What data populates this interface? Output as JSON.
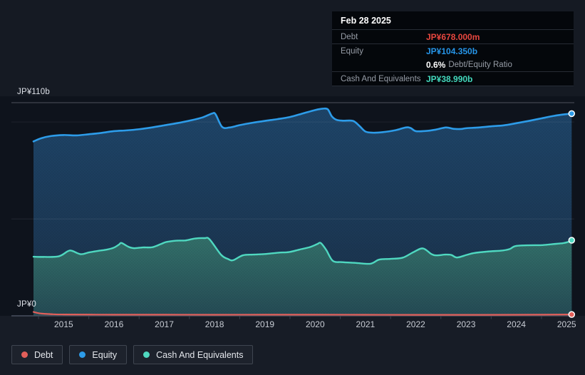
{
  "colors": {
    "debt": "#e25f5a",
    "equity": "#2d9ce9",
    "cash": "#4fd8c0",
    "debt_value": "#e8473f",
    "equity_value": "#2695e8",
    "cash_value": "#43d9bd"
  },
  "y_axis": {
    "top_label": "JP¥110b",
    "zero_label": "JP¥0"
  },
  "tooltip": {
    "date": "Feb 28 2025",
    "debt_label": "Debt",
    "debt_value": "JP¥678.000m",
    "equity_label": "Equity",
    "equity_value": "JP¥104.350b",
    "ratio_value": "0.6%",
    "ratio_label": "Debt/Equity Ratio",
    "cash_label": "Cash And Equivalents",
    "cash_value": "JP¥38.990b"
  },
  "legend": {
    "items": [
      {
        "label": "Debt",
        "color_key": "debt"
      },
      {
        "label": "Equity",
        "color_key": "equity"
      },
      {
        "label": "Cash And Equivalents",
        "color_key": "cash"
      }
    ]
  },
  "chart_data": {
    "type": "area",
    "title": "",
    "x_unit": "fiscal year",
    "y_unit": "JP¥ billions",
    "xlim": [
      2014.4,
      2025.11
    ],
    "ylim": [
      0,
      110
    ],
    "x_ticks": [
      2015,
      2016,
      2017,
      2018,
      2019,
      2020,
      2021,
      2022,
      2023,
      2024,
      2025
    ],
    "y_gridlines": [
      110,
      100,
      50,
      0
    ],
    "grid": "horizontal-only",
    "legend_position": "bottom-left",
    "series": [
      {
        "name": "Debt",
        "color_key": "debt",
        "latest_label": "JP¥678.000m",
        "points": [
          [
            2014.4,
            2.0
          ],
          [
            2014.55,
            1.2
          ],
          [
            2014.8,
            0.8
          ],
          [
            2015.0,
            0.7
          ],
          [
            2016.0,
            0.6
          ],
          [
            2017.0,
            0.6
          ],
          [
            2018.0,
            0.55
          ],
          [
            2019.0,
            0.6
          ],
          [
            2020.0,
            0.6
          ],
          [
            2021.0,
            0.55
          ],
          [
            2022.0,
            0.5
          ],
          [
            2023.0,
            0.5
          ],
          [
            2024.0,
            0.55
          ],
          [
            2025.1,
            0.678
          ]
        ]
      },
      {
        "name": "Equity",
        "color_key": "equity",
        "latest_label": "JP¥104.350b",
        "points": [
          [
            2014.4,
            90.0
          ],
          [
            2014.55,
            91.6
          ],
          [
            2014.75,
            92.8
          ],
          [
            2015.0,
            93.3
          ],
          [
            2015.25,
            93.1
          ],
          [
            2015.5,
            93.7
          ],
          [
            2015.75,
            94.4
          ],
          [
            2016.0,
            95.3
          ],
          [
            2016.25,
            95.7
          ],
          [
            2016.5,
            96.3
          ],
          [
            2016.75,
            97.2
          ],
          [
            2017.0,
            98.3
          ],
          [
            2017.25,
            99.4
          ],
          [
            2017.5,
            100.7
          ],
          [
            2017.75,
            102.3
          ],
          [
            2017.95,
            104.4
          ],
          [
            2018.02,
            104.0
          ],
          [
            2018.15,
            97.5
          ],
          [
            2018.3,
            97.2
          ],
          [
            2018.5,
            98.4
          ],
          [
            2018.75,
            99.6
          ],
          [
            2019.0,
            100.6
          ],
          [
            2019.25,
            101.5
          ],
          [
            2019.5,
            102.6
          ],
          [
            2019.75,
            104.4
          ],
          [
            2020.0,
            106.2
          ],
          [
            2020.15,
            106.9
          ],
          [
            2020.25,
            106.6
          ],
          [
            2020.33,
            103.0
          ],
          [
            2020.42,
            101.2
          ],
          [
            2020.55,
            100.7
          ],
          [
            2020.75,
            100.6
          ],
          [
            2020.88,
            98.0
          ],
          [
            2021.0,
            95.1
          ],
          [
            2021.15,
            94.5
          ],
          [
            2021.35,
            94.8
          ],
          [
            2021.6,
            95.8
          ],
          [
            2021.8,
            97.2
          ],
          [
            2021.9,
            96.9
          ],
          [
            2022.0,
            95.3
          ],
          [
            2022.2,
            95.4
          ],
          [
            2022.4,
            96.1
          ],
          [
            2022.6,
            97.2
          ],
          [
            2022.75,
            96.5
          ],
          [
            2022.9,
            96.4
          ],
          [
            2023.0,
            96.8
          ],
          [
            2023.25,
            97.2
          ],
          [
            2023.5,
            97.8
          ],
          [
            2023.75,
            98.3
          ],
          [
            2024.0,
            99.4
          ],
          [
            2024.25,
            100.6
          ],
          [
            2024.5,
            101.9
          ],
          [
            2024.75,
            103.2
          ],
          [
            2025.0,
            104.1
          ],
          [
            2025.1,
            104.35
          ]
        ]
      },
      {
        "name": "Cash And Equivalents",
        "color_key": "cash",
        "latest_label": "JP¥38.990b",
        "points": [
          [
            2014.4,
            30.5
          ],
          [
            2014.6,
            30.4
          ],
          [
            2014.9,
            30.7
          ],
          [
            2015.08,
            33.3
          ],
          [
            2015.16,
            33.6
          ],
          [
            2015.34,
            31.8
          ],
          [
            2015.5,
            32.7
          ],
          [
            2015.68,
            33.5
          ],
          [
            2015.86,
            34.2
          ],
          [
            2016.0,
            35.2
          ],
          [
            2016.1,
            36.8
          ],
          [
            2016.15,
            37.6
          ],
          [
            2016.29,
            35.6
          ],
          [
            2016.4,
            34.9
          ],
          [
            2016.57,
            35.3
          ],
          [
            2016.76,
            35.4
          ],
          [
            2016.93,
            37.0
          ],
          [
            2017.04,
            38.1
          ],
          [
            2017.24,
            38.8
          ],
          [
            2017.42,
            38.9
          ],
          [
            2017.61,
            39.9
          ],
          [
            2017.8,
            40.1
          ],
          [
            2017.9,
            39.5
          ],
          [
            2018.13,
            31.5
          ],
          [
            2018.27,
            29.3
          ],
          [
            2018.37,
            28.7
          ],
          [
            2018.56,
            31.2
          ],
          [
            2018.77,
            31.6
          ],
          [
            2019.0,
            31.9
          ],
          [
            2019.27,
            32.6
          ],
          [
            2019.48,
            32.9
          ],
          [
            2019.69,
            34.2
          ],
          [
            2019.9,
            35.5
          ],
          [
            2020.04,
            37.0
          ],
          [
            2020.11,
            37.6
          ],
          [
            2020.22,
            34.0
          ],
          [
            2020.35,
            28.4
          ],
          [
            2020.53,
            27.7
          ],
          [
            2020.81,
            27.3
          ],
          [
            2021.1,
            26.9
          ],
          [
            2021.27,
            29.0
          ],
          [
            2021.5,
            29.4
          ],
          [
            2021.74,
            30.0
          ],
          [
            2021.95,
            32.8
          ],
          [
            2022.14,
            34.8
          ],
          [
            2022.31,
            31.9
          ],
          [
            2022.41,
            31.2
          ],
          [
            2022.59,
            31.6
          ],
          [
            2022.71,
            31.4
          ],
          [
            2022.82,
            30.1
          ],
          [
            2023.02,
            31.5
          ],
          [
            2023.16,
            32.4
          ],
          [
            2023.44,
            33.2
          ],
          [
            2023.72,
            33.7
          ],
          [
            2023.87,
            34.5
          ],
          [
            2023.98,
            36.0
          ],
          [
            2024.22,
            36.4
          ],
          [
            2024.51,
            36.5
          ],
          [
            2024.72,
            37.0
          ],
          [
            2024.93,
            37.5
          ],
          [
            2025.04,
            38.2
          ],
          [
            2025.1,
            38.99
          ]
        ]
      }
    ]
  }
}
